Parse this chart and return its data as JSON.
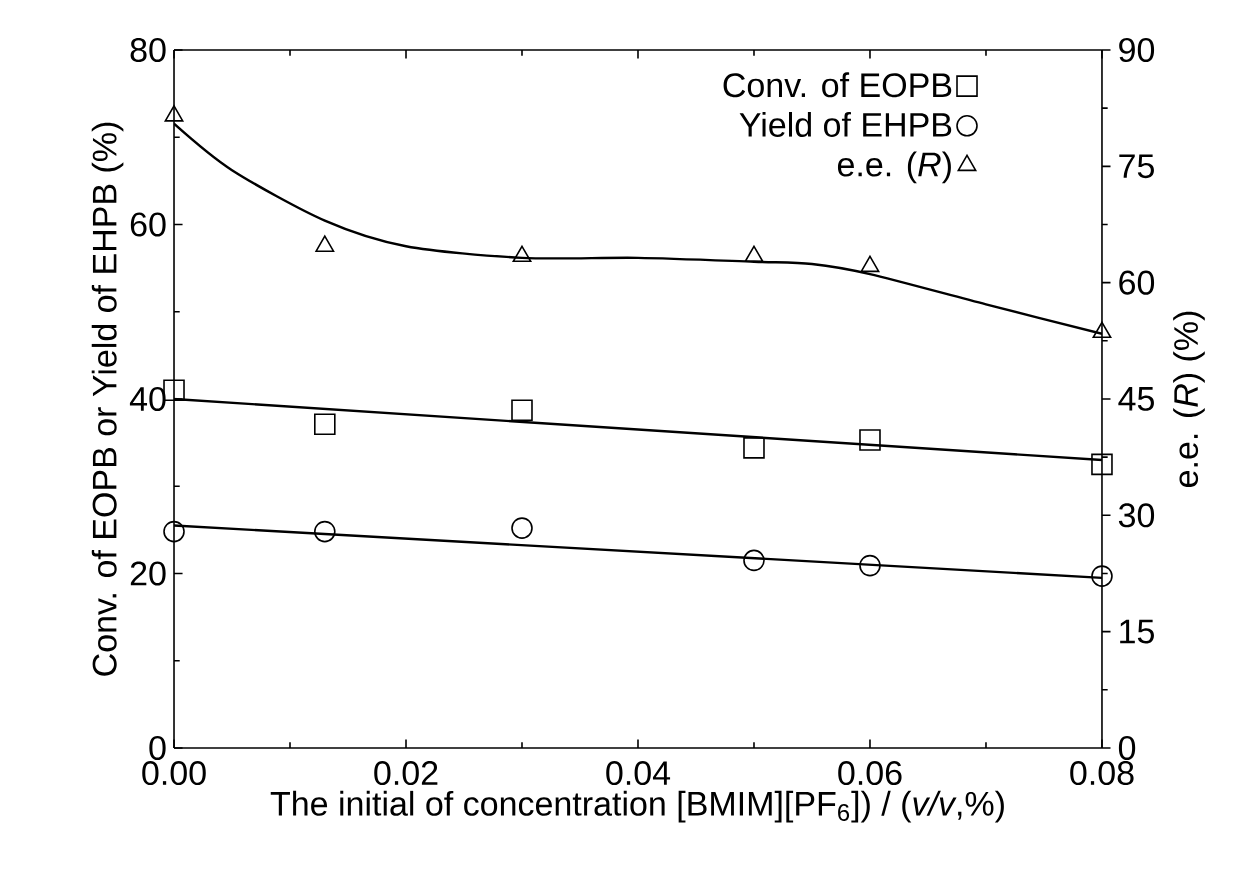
{
  "chart_data": {
    "type": "scatter",
    "xlabel": "The initial of concentration [BMIM][PF$_{6}$]) / (*v/v*,%)",
    "ylabel": "Conv. of EOPB or Yield of EHPB (%)",
    "y2label": "e.e. (*R*) (%)",
    "x": [
      0,
      0.013,
      0.03,
      0.05,
      0.06,
      0.08
    ],
    "xlim": [
      0,
      0.08
    ],
    "xticks": [
      {
        "value": 0,
        "label": "0.00"
      },
      {
        "value": 0.02,
        "label": "0.02"
      },
      {
        "value": 0.04,
        "label": "0.04"
      },
      {
        "value": 0.06,
        "label": "0.06"
      },
      {
        "value": 0.08,
        "label": "0.08"
      }
    ],
    "ylim": [
      0,
      80
    ],
    "yticks": [
      0,
      20,
      40,
      60,
      80
    ],
    "y2lim": [
      0,
      90
    ],
    "y2ticks": [
      0,
      15,
      30,
      45,
      60,
      75,
      90
    ],
    "legend": "top right",
    "series": [
      {
        "type": "line",
        "color": "#000000",
        "x": [
          0,
          0.08
        ],
        "values": [
          40,
          33
        ]
      },
      {
        "type": "line",
        "color": "#000000",
        "x": [
          0,
          0.08
        ],
        "values": [
          25.5,
          19.5
        ]
      },
      {
        "type": "line",
        "color": "#000000",
        "axis": "y2",
        "x": [
          0,
          0.005,
          0.013,
          0.02,
          0.03,
          0.04,
          0.05,
          0.055,
          0.06,
          0.07,
          0.08
        ],
        "values": [
          80.5,
          74.5,
          68,
          64.7,
          63.2,
          63.2,
          62.7,
          62.4,
          61.1,
          57.2,
          53.4
        ]
      },
      {
        "name": "Conv. of EOPB",
        "marker": "square",
        "color": "#000000",
        "values": [
          41.0,
          37.1,
          38.7,
          34.4,
          35.3,
          32.5
        ]
      },
      {
        "name": "Yield of EHPB",
        "marker": "circle",
        "color": "#000000",
        "values": [
          24.8,
          24.8,
          25.2,
          21.5,
          20.9,
          19.7
        ]
      },
      {
        "name": "e.e. (*R*)",
        "marker": "triangle",
        "axis": "y2",
        "color": "#000000",
        "values": [
          81.5,
          64.7,
          63.4,
          63.4,
          62.1,
          53.6
        ]
      }
    ]
  }
}
